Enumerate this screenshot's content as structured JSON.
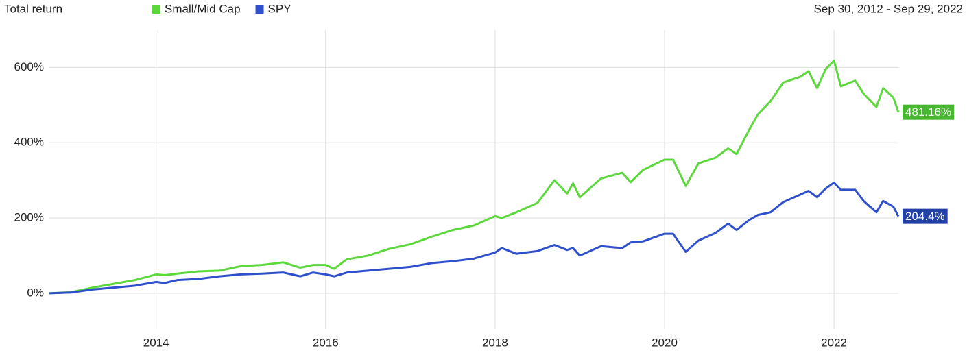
{
  "chart_data": {
    "type": "line",
    "title": "Total return",
    "subtitle": "Sep 30, 2012 - Sep 29, 2022",
    "x": [
      2012.74,
      2013.0,
      2013.25,
      2013.5,
      2013.75,
      2014.0,
      2014.1,
      2014.25,
      2014.5,
      2014.75,
      2015.0,
      2015.25,
      2015.5,
      2015.7,
      2015.85,
      2016.0,
      2016.1,
      2016.25,
      2016.5,
      2016.75,
      2017.0,
      2017.25,
      2017.5,
      2017.75,
      2018.0,
      2018.08,
      2018.25,
      2018.5,
      2018.7,
      2018.85,
      2018.92,
      2019.0,
      2019.25,
      2019.5,
      2019.6,
      2019.75,
      2020.0,
      2020.1,
      2020.25,
      2020.4,
      2020.6,
      2020.75,
      2020.85,
      2021.0,
      2021.1,
      2021.25,
      2021.4,
      2021.6,
      2021.7,
      2021.8,
      2021.9,
      2022.0,
      2022.08,
      2022.25,
      2022.35,
      2022.5,
      2022.58,
      2022.7,
      2022.76
    ],
    "series": [
      {
        "name": "Small/Mid Cap",
        "color": "#5cd83c",
        "label_color": "#45b82e",
        "last_value_label": "481.16%",
        "values": [
          0,
          3,
          15,
          25,
          35,
          50,
          48,
          52,
          58,
          60,
          72,
          75,
          82,
          68,
          75,
          75,
          65,
          90,
          100,
          118,
          130,
          150,
          168,
          180,
          205,
          200,
          215,
          240,
          300,
          265,
          292,
          255,
          305,
          320,
          295,
          328,
          355,
          355,
          285,
          345,
          360,
          385,
          370,
          435,
          475,
          510,
          560,
          575,
          590,
          545,
          595,
          618,
          550,
          565,
          530,
          495,
          545,
          520,
          481.16
        ]
      },
      {
        "name": "SPY",
        "color": "#2f50cc",
        "label_color": "#233fa8",
        "last_value_label": "204.4%",
        "values": [
          0,
          2,
          10,
          15,
          20,
          30,
          27,
          35,
          38,
          45,
          50,
          52,
          55,
          45,
          55,
          50,
          45,
          55,
          60,
          65,
          70,
          80,
          85,
          92,
          108,
          120,
          105,
          112,
          128,
          115,
          120,
          100,
          125,
          120,
          135,
          138,
          158,
          158,
          110,
          140,
          160,
          185,
          168,
          195,
          208,
          215,
          242,
          262,
          272,
          255,
          278,
          294,
          275,
          275,
          245,
          215,
          245,
          230,
          204.4
        ]
      }
    ],
    "xlim": [
      2012.74,
      2022.76
    ],
    "xticks": [
      2014,
      2016,
      2018,
      2020,
      2022
    ],
    "ylim": [
      -95,
      670
    ],
    "yticks": [
      {
        "value": 0,
        "label": "0%"
      },
      {
        "value": 200,
        "label": "200%"
      },
      {
        "value": 400,
        "label": "400%"
      },
      {
        "value": 600,
        "label": "600%"
      }
    ],
    "grid": true
  }
}
